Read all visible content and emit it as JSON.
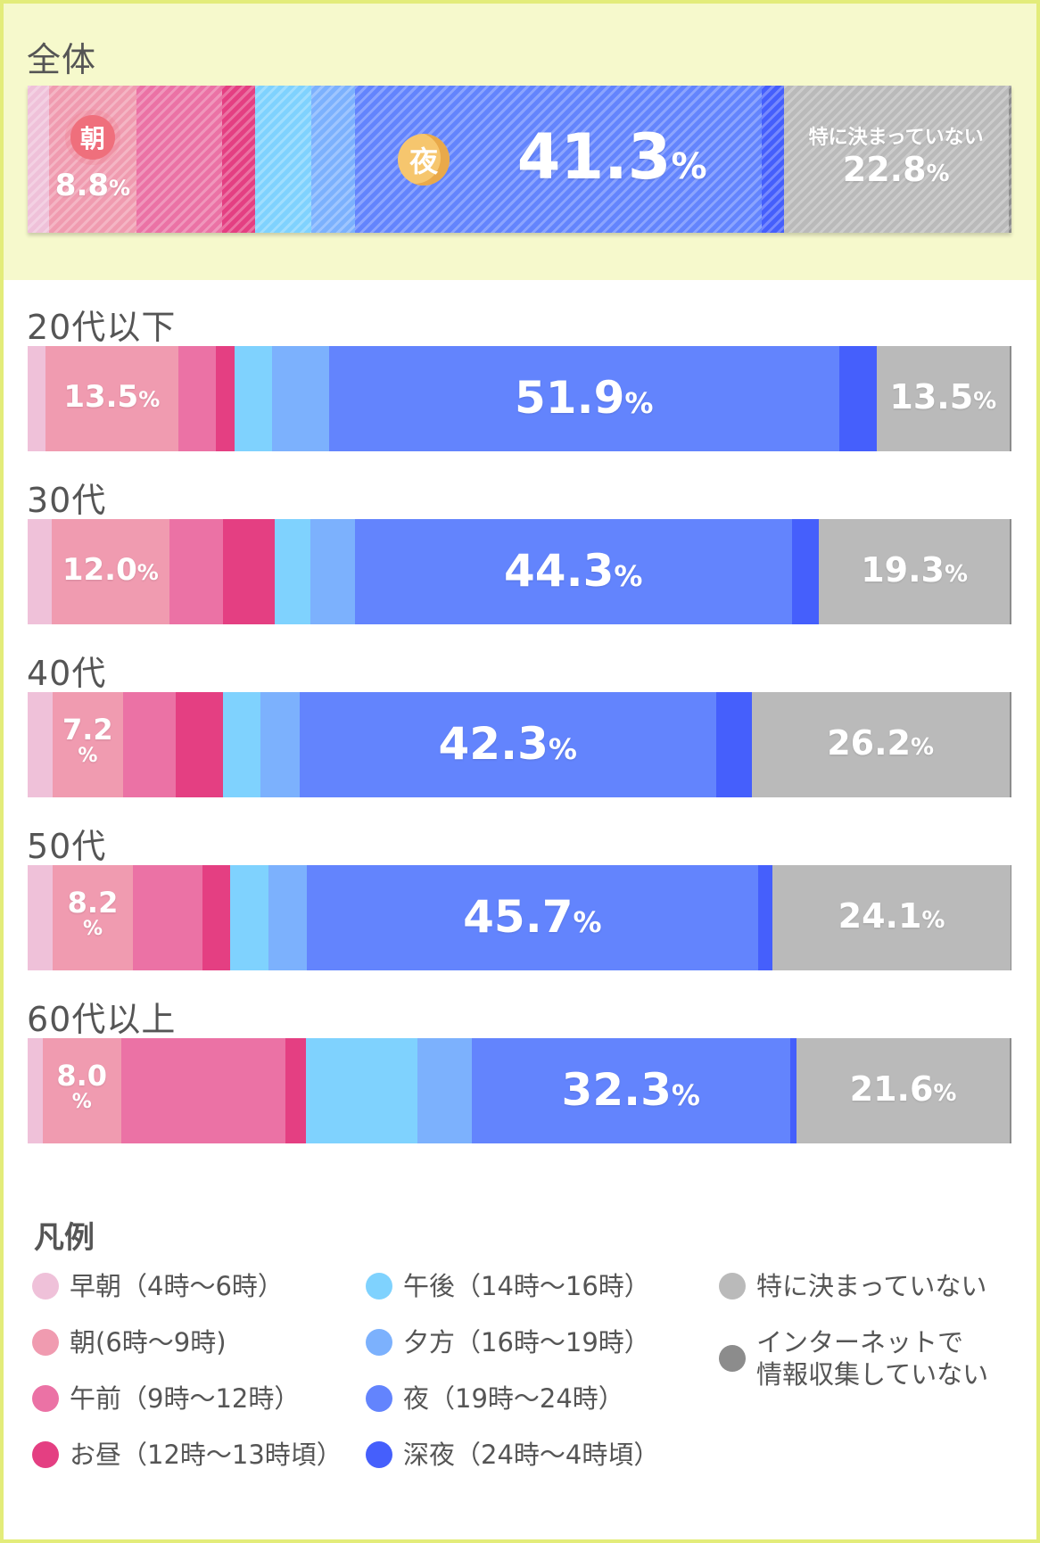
{
  "colors": {
    "early_morning": "#efc1d9",
    "morning": "#f09bb0",
    "forenoon": "#eb72a5",
    "noon": "#e43f82",
    "afternoon": "#7fd2fe",
    "evening": "#7cb1fd",
    "night": "#6384fd",
    "late_night": "#455ffc",
    "unset": "#bababa",
    "no_internet": "#8c8c8c",
    "top_background": "#f6f9cc",
    "frame": "#e3ec7a"
  },
  "overall": {
    "label": "全体",
    "badge_morning": "朝",
    "badge_night": "夜",
    "unset_text": "特に決まっていない"
  },
  "legend": {
    "title": "凡例",
    "items": [
      {
        "key": "early_morning",
        "label": "早朝（4時〜6時）"
      },
      {
        "key": "morning",
        "label": "朝(6時〜9時)"
      },
      {
        "key": "forenoon",
        "label": "午前（9時〜12時）"
      },
      {
        "key": "noon",
        "label": "お昼（12時〜13時頃）"
      },
      {
        "key": "afternoon",
        "label": "午後（14時〜16時）"
      },
      {
        "key": "evening",
        "label": "夕方（16時〜19時）"
      },
      {
        "key": "night",
        "label": "夜（19時〜24時）"
      },
      {
        "key": "late_night",
        "label": "深夜（24時〜4時頃）"
      },
      {
        "key": "unset",
        "label": "特に決まっていない"
      },
      {
        "key": "no_internet",
        "label_line1": "インターネットで",
        "label_line2": "情報収集していない"
      }
    ]
  },
  "chart_data": {
    "type": "bar",
    "orientation": "horizontal",
    "stacked": "100%",
    "categories": [
      "全体",
      "20代以下",
      "30代",
      "40代",
      "50代",
      "60代以上"
    ],
    "series": [
      {
        "name": "早朝（4時〜6時）",
        "values": [
          2.2,
          1.8,
          2.4,
          2.5,
          2.5,
          1.5
        ]
      },
      {
        "name": "朝(6時〜9時)",
        "values": [
          8.8,
          13.5,
          12.0,
          7.2,
          8.2,
          8.0
        ]
      },
      {
        "name": "午前（9時〜12時）",
        "values": [
          8.7,
          3.8,
          5.4,
          5.3,
          7.0,
          16.7
        ]
      },
      {
        "name": "お昼（12時〜13時頃）",
        "values": [
          3.4,
          1.9,
          5.3,
          4.8,
          2.8,
          2.1
        ]
      },
      {
        "name": "午後（14時〜16時）",
        "values": [
          5.7,
          3.8,
          3.6,
          3.8,
          3.9,
          11.3
        ]
      },
      {
        "name": "夕方（16時〜19時）",
        "values": [
          4.4,
          5.8,
          4.5,
          4.0,
          3.9,
          5.5
        ]
      },
      {
        "name": "夜（19時〜24時）",
        "values": [
          41.3,
          51.9,
          44.3,
          42.3,
          45.7,
          32.3
        ]
      },
      {
        "name": "深夜（24時〜4時頃）",
        "values": [
          2.2,
          3.8,
          2.8,
          3.6,
          1.5,
          0.7
        ]
      },
      {
        "name": "特に決まっていない",
        "values": [
          22.8,
          13.5,
          19.3,
          26.2,
          24.1,
          21.6
        ]
      },
      {
        "name": "インターネットで情報収集していない",
        "values": [
          0.3,
          0.2,
          0.2,
          0.2,
          0.1,
          0.2
        ]
      }
    ],
    "data_labels": [
      {
        "category": "全体",
        "morning": "8.8",
        "night": "41.3",
        "unset": "22.8"
      },
      {
        "category": "20代以下",
        "morning": "13.5",
        "night": "51.9",
        "unset": "13.5"
      },
      {
        "category": "30代",
        "morning": "12.0",
        "night": "44.3",
        "unset": "19.3"
      },
      {
        "category": "40代",
        "morning": "7.2",
        "night": "42.3",
        "unset": "26.2"
      },
      {
        "category": "50代",
        "morning": "8.2",
        "night": "45.7",
        "unset": "24.1"
      },
      {
        "category": "60代以上",
        "morning": "8.0",
        "night": "32.3",
        "unset": "21.6"
      }
    ],
    "unit": "%",
    "xlim": [
      0,
      100
    ],
    "legend_position": "bottom"
  }
}
